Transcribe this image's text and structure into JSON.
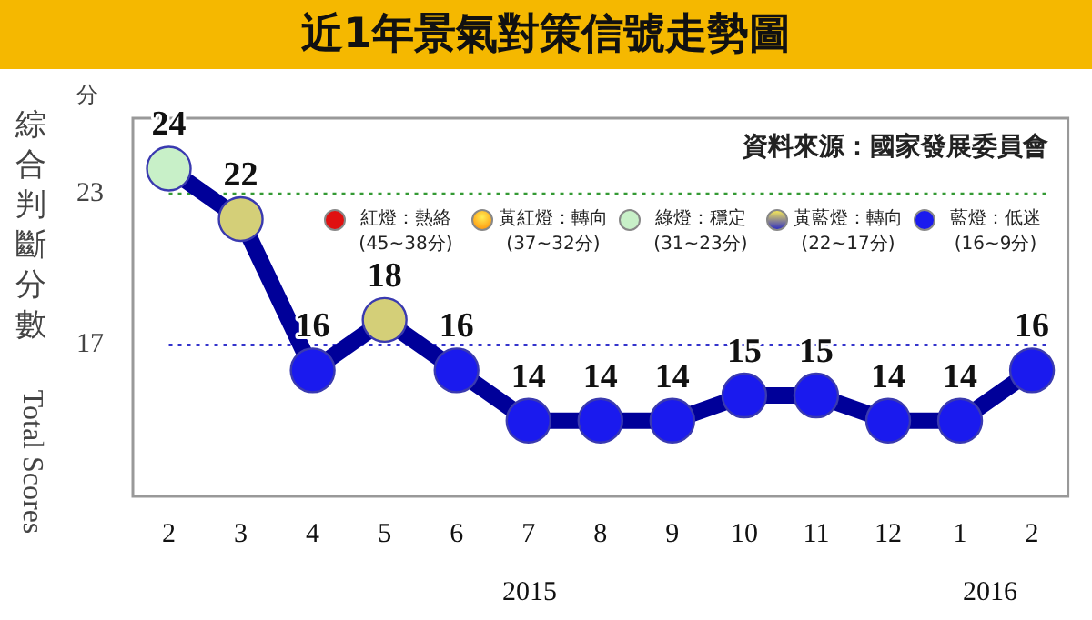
{
  "chart_data": {
    "type": "line",
    "title": "近1年景氣對策信號走勢圖",
    "ylabel": "綜合判斷分數 Total Scores",
    "categories": [
      "2",
      "3",
      "4",
      "5",
      "6",
      "7",
      "8",
      "9",
      "10",
      "11",
      "12",
      "1",
      "2"
    ],
    "series": [
      {
        "color": "#000099",
        "colors": [
          "#c8f0c8",
          "#d4cf78",
          "#1a1aee",
          "#d4cf78",
          "#1a1aee",
          "#1a1aee",
          "#1a1aee",
          "#1a1aee",
          "#1a1aee",
          "#1a1aee",
          "#1a1aee",
          "#1a1aee",
          "#1a1aee"
        ],
        "values": [
          24,
          22,
          16,
          18,
          16,
          14,
          14,
          14,
          15,
          15,
          14,
          14,
          16
        ]
      }
    ],
    "ylim": [
      11,
      26
    ],
    "yticks": [
      17,
      23
    ],
    "grid": false,
    "marker": "circle",
    "line_style": "solid",
    "data_labels": true,
    "ref_lines": [
      {
        "axis": "y",
        "value": 23,
        "color": "#339933",
        "line_style": "dotted"
      },
      {
        "axis": "y",
        "value": 17,
        "color": "#3333cc",
        "line_style": "dotted"
      }
    ],
    "annotations": [
      "分",
      "資料來源：國家發展委員會",
      "紅燈：熱絡 (45~38分)",
      "黃紅燈：轉向 (37~32分)",
      "綠燈：穩定 (31~23分)",
      "黃藍燈：轉向 (22~17分)",
      "藍燈：低迷 (16~9分)",
      "2015",
      "2016"
    ]
  }
}
